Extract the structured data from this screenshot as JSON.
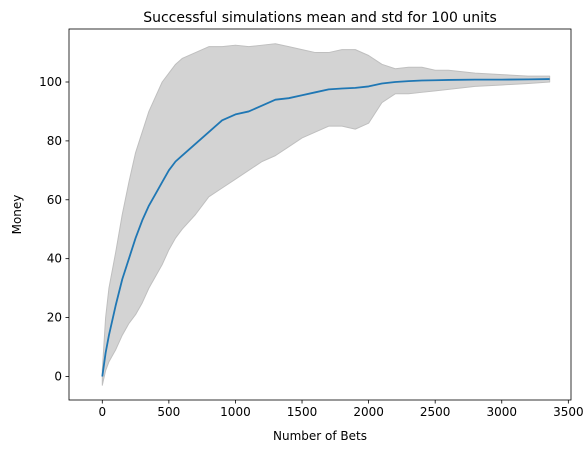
{
  "chart_data": {
    "type": "area",
    "title": "Successful simulations mean and std for 100 units",
    "xlabel": "Number of Bets",
    "ylabel": "Money",
    "xlim": [
      -250,
      3520
    ],
    "ylim": [
      -8,
      118
    ],
    "xticks": [
      0,
      500,
      1000,
      1500,
      2000,
      2500,
      3000,
      3500
    ],
    "yticks": [
      0,
      20,
      40,
      60,
      80,
      100
    ],
    "grid": false,
    "legend": "none",
    "colors": {
      "mean": "#1f77b4",
      "band": "#d3d3d3",
      "band_edge": "#bfbfbf"
    },
    "series": [
      {
        "role": "mean",
        "x": [
          0,
          25,
          50,
          100,
          150,
          200,
          250,
          300,
          350,
          400,
          450,
          500,
          550,
          600,
          700,
          800,
          900,
          1000,
          1100,
          1200,
          1300,
          1400,
          1500,
          1600,
          1700,
          1800,
          1900,
          2000,
          2100,
          2200,
          2300,
          2400,
          2500,
          2600,
          2800,
          3000,
          3200,
          3360
        ],
        "y": [
          0,
          8,
          14,
          24,
          33,
          40,
          47,
          53,
          58,
          62,
          66,
          70,
          73,
          75,
          79,
          83,
          87,
          89,
          90,
          92,
          94,
          94.5,
          95.5,
          96.5,
          97.5,
          97.8,
          98,
          98.5,
          99.5,
          100,
          100.3,
          100.5,
          100.6,
          100.7,
          100.8,
          100.8,
          100.9,
          101
        ]
      },
      {
        "role": "mean+std",
        "x": [
          0,
          25,
          50,
          100,
          150,
          200,
          250,
          300,
          350,
          400,
          450,
          500,
          550,
          600,
          700,
          800,
          900,
          1000,
          1100,
          1200,
          1300,
          1400,
          1500,
          1600,
          1700,
          1800,
          1900,
          2000,
          2100,
          2200,
          2300,
          2400,
          2500,
          2600,
          2800,
          3000,
          3200,
          3360
        ],
        "y": [
          2,
          20,
          30,
          42,
          55,
          66,
          76,
          83,
          90,
          95,
          100,
          103,
          106,
          108,
          110,
          112,
          112,
          112.5,
          112,
          112.5,
          113,
          112,
          111,
          110,
          110,
          111,
          111,
          109,
          106,
          104.5,
          105,
          105,
          104,
          104,
          103,
          102.5,
          102,
          102
        ]
      },
      {
        "role": "mean-std",
        "x": [
          0,
          25,
          50,
          100,
          150,
          200,
          250,
          300,
          350,
          400,
          450,
          500,
          550,
          600,
          700,
          800,
          900,
          1000,
          1100,
          1200,
          1300,
          1400,
          1500,
          1600,
          1700,
          1800,
          1900,
          2000,
          2100,
          2200,
          2300,
          2400,
          2500,
          2600,
          2800,
          3000,
          3200,
          3360
        ],
        "y": [
          -3,
          2,
          5,
          9,
          14,
          18,
          21,
          25,
          30,
          34,
          38,
          43,
          47,
          50,
          55,
          61,
          64,
          67,
          70,
          73,
          75,
          78,
          81,
          83,
          85,
          85,
          84,
          86,
          93,
          96,
          96,
          96.5,
          97,
          97.5,
          98.5,
          99,
          99.5,
          100
        ]
      }
    ]
  }
}
